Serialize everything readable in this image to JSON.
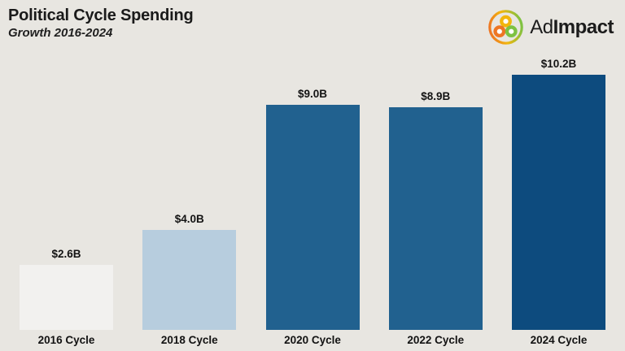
{
  "header": {
    "title": "Political Cycle Spending",
    "subtitle": "Growth 2016-2024"
  },
  "logo": {
    "text_regular": "Ad",
    "text_bold": "Impact",
    "icon": "adimpact-network-icon",
    "colors": {
      "orange": "#ee7623",
      "yellow": "#f2b60d",
      "green": "#7dc242",
      "text": "#1c1c1c"
    }
  },
  "chart_data": {
    "type": "bar",
    "title": "Political Cycle Spending",
    "subtitle": "Growth 2016-2024",
    "categories": [
      "2016 Cycle",
      "2018 Cycle",
      "2020 Cycle",
      "2022 Cycle",
      "2024 Cycle"
    ],
    "values": [
      2.6,
      4.0,
      9.0,
      8.9,
      10.2
    ],
    "value_labels": [
      "$2.6B",
      "$4.0B",
      "$9.0B",
      "$8.9B",
      "$10.2B"
    ],
    "bar_colors": [
      "#f2f1ef",
      "#b7cdde",
      "#21618f",
      "#21618f",
      "#0d4b7e"
    ],
    "xlabel": "",
    "ylabel": "",
    "ylim": [
      0,
      10.2
    ],
    "grid": false,
    "legend": false,
    "background": "#e8e6e1"
  }
}
